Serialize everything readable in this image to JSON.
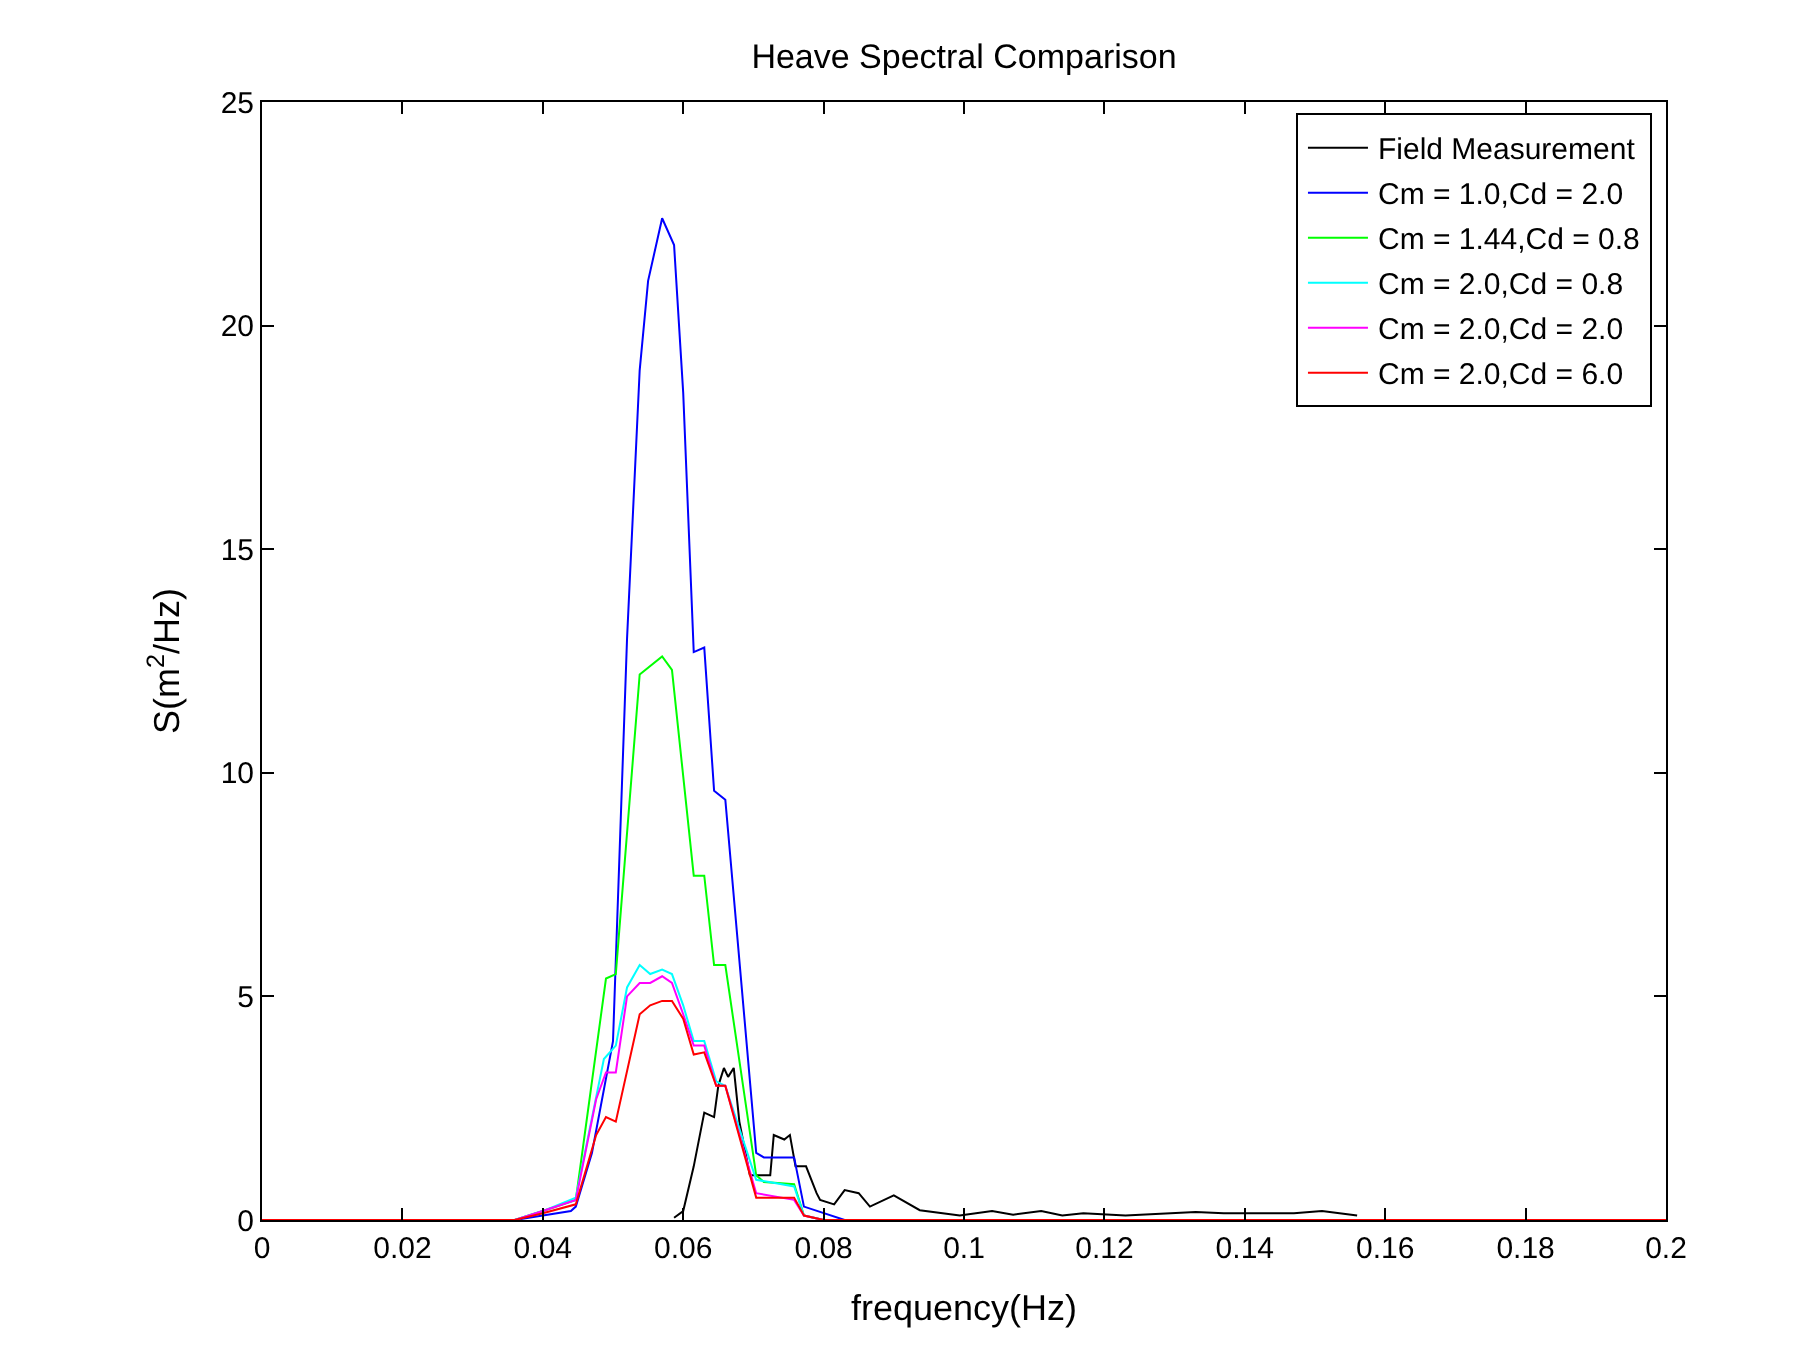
{
  "chart_data": {
    "type": "line",
    "title": "Heave Spectral Comparison",
    "xlabel": "frequency(Hz)",
    "ylabel": "S(m$^{2}$/Hz)",
    "xlim": [
      0,
      0.2
    ],
    "xticks": [
      0,
      0.02,
      0.04,
      0.06,
      0.08,
      0.1,
      0.12,
      0.14,
      0.16,
      0.18,
      0.2
    ],
    "ylim": [
      0,
      25
    ],
    "yticks": [
      0,
      5,
      10,
      15,
      20,
      25
    ],
    "legend": "top right",
    "series": [
      {
        "name": "Field Measurement",
        "color": "#000000",
        "x": [
          0.0587,
          0.06,
          0.0615,
          0.063,
          0.0644,
          0.065,
          0.0658,
          0.0664,
          0.0672,
          0.068,
          0.0695,
          0.071,
          0.0724,
          0.0729,
          0.0744,
          0.0752,
          0.076,
          0.0775,
          0.079,
          0.0795,
          0.0815,
          0.083,
          0.085,
          0.0866,
          0.09,
          0.0937,
          0.0994,
          0.104,
          0.107,
          0.111,
          0.114,
          0.117,
          0.123,
          0.133,
          0.137,
          0.147,
          0.151,
          0.156
        ],
        "values": [
          0.05,
          0.2,
          1.2,
          2.4,
          2.3,
          3.0,
          3.4,
          3.2,
          3.4,
          2.2,
          1.0,
          1.0,
          1.0,
          1.9,
          1.8,
          1.9,
          1.2,
          1.2,
          0.6,
          0.45,
          0.35,
          0.67,
          0.6,
          0.3,
          0.55,
          0.22,
          0.1,
          0.2,
          0.12,
          0.2,
          0.1,
          0.15,
          0.1,
          0.18,
          0.15,
          0.15,
          0.2,
          0.1
        ]
      },
      {
        "name": "Cm = 1.0,Cd = 2.0",
        "color": "#0000ff",
        "x": [
          0.036,
          0.04,
          0.044,
          0.0447,
          0.047,
          0.05,
          0.052,
          0.0538,
          0.055,
          0.057,
          0.0587,
          0.06,
          0.0615,
          0.063,
          0.0644,
          0.066,
          0.0704,
          0.0715,
          0.0758,
          0.0772,
          0.083
        ],
        "values": [
          0,
          0.1,
          0.2,
          0.3,
          1.5,
          4.0,
          13.0,
          19.0,
          21.0,
          22.4,
          21.8,
          18.5,
          12.7,
          12.8,
          9.6,
          9.4,
          1.5,
          1.4,
          1.4,
          0.3,
          0
        ]
      },
      {
        "name": "Cm = 1.44,Cd = 0.8",
        "color": "#00ff00",
        "x": [
          0.036,
          0.04,
          0.0447,
          0.049,
          0.0504,
          0.0538,
          0.057,
          0.0584,
          0.0615,
          0.063,
          0.0644,
          0.066,
          0.0704,
          0.0715,
          0.0758,
          0.0772,
          0.08
        ],
        "values": [
          0,
          0.2,
          0.45,
          5.4,
          5.5,
          12.2,
          12.6,
          12.3,
          7.7,
          7.7,
          5.7,
          5.7,
          1.0,
          0.85,
          0.8,
          0.1,
          0
        ]
      },
      {
        "name": "Cm = 2.0,Cd = 0.8",
        "color": "#00ffff",
        "x": [
          0.036,
          0.04,
          0.0447,
          0.0487,
          0.0504,
          0.052,
          0.0538,
          0.0553,
          0.057,
          0.0584,
          0.06,
          0.0615,
          0.063,
          0.0647,
          0.066,
          0.0704,
          0.0758,
          0.0772,
          0.08
        ],
        "values": [
          0,
          0.2,
          0.5,
          3.6,
          3.9,
          5.2,
          5.7,
          5.5,
          5.6,
          5.5,
          4.8,
          4.0,
          4.0,
          3.1,
          3.0,
          0.9,
          0.75,
          0.1,
          0
        ]
      },
      {
        "name": "Cm = 2.0,Cd = 2.0",
        "color": "#ff00ff",
        "x": [
          0.036,
          0.04,
          0.0447,
          0.0476,
          0.049,
          0.0504,
          0.052,
          0.0538,
          0.0553,
          0.057,
          0.0584,
          0.06,
          0.0615,
          0.063,
          0.0647,
          0.066,
          0.0704,
          0.0758,
          0.0772,
          0.08
        ],
        "values": [
          0,
          0.2,
          0.45,
          2.7,
          3.3,
          3.3,
          5.0,
          5.3,
          5.3,
          5.45,
          5.3,
          4.6,
          3.9,
          3.9,
          3.0,
          3.0,
          0.6,
          0.45,
          0.1,
          0
        ]
      },
      {
        "name": "Cm = 2.0,Cd = 6.0",
        "color": "#ff0000",
        "x": [
          0,
          0.036,
          0.04,
          0.0447,
          0.0476,
          0.049,
          0.0504,
          0.0538,
          0.0553,
          0.057,
          0.0584,
          0.06,
          0.0615,
          0.063,
          0.0647,
          0.066,
          0.0704,
          0.0758,
          0.0772,
          0.08,
          0.2
        ],
        "values": [
          0,
          0,
          0.15,
          0.35,
          1.9,
          2.3,
          2.2,
          4.6,
          4.8,
          4.9,
          4.9,
          4.5,
          3.7,
          3.75,
          3.0,
          3.0,
          0.5,
          0.5,
          0.1,
          0,
          0
        ]
      }
    ]
  }
}
